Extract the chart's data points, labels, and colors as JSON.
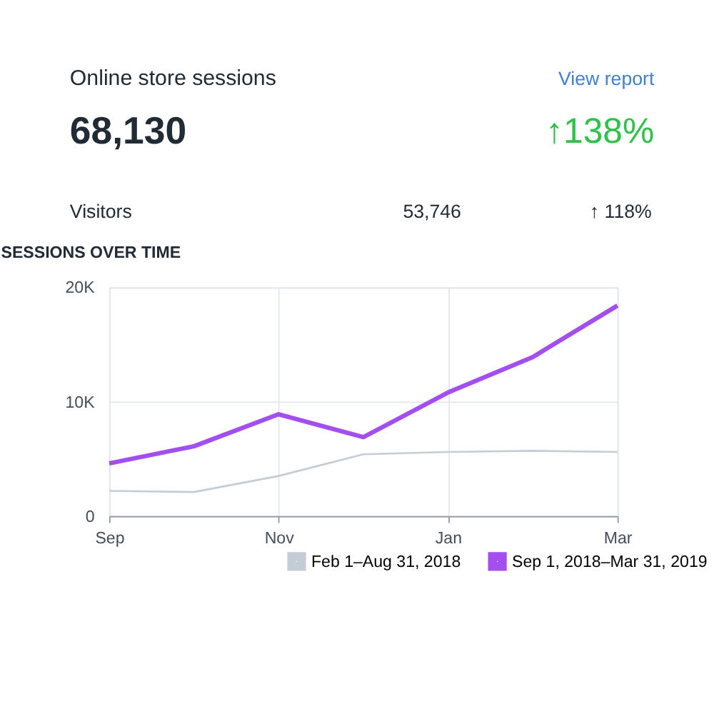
{
  "chart_data": {
    "type": "line",
    "title": "SESSIONS OVER TIME",
    "annotations": [
      "Online store sessions",
      "View report",
      "68,130",
      "↑138%",
      "Visitors",
      "53,746",
      "↑ 118%"
    ],
    "categories": [
      "Sep",
      null,
      "Nov",
      null,
      "Jan",
      null,
      "Mar"
    ],
    "series": [
      {
        "name": "Feb 1–Aug 31, 2018",
        "color": "#c4cdd5",
        "values": [
          2200,
          2100,
          3500,
          5400,
          5600,
          5700,
          5600
        ]
      },
      {
        "name": "Sep 1, 2018–Mar 31, 2019",
        "color": "#a34ff0",
        "values": [
          4600,
          6100,
          8900,
          6900,
          10800,
          13900,
          18400
        ]
      }
    ],
    "ylim": [
      0,
      20000
    ],
    "yticks": [
      0,
      {
        "value": 10000,
        "label": "10K"
      },
      {
        "value": 20000,
        "label": "20K"
      }
    ],
    "grid": true,
    "legend": "bottom right",
    "marker": "none",
    "line_style": "solid"
  }
}
